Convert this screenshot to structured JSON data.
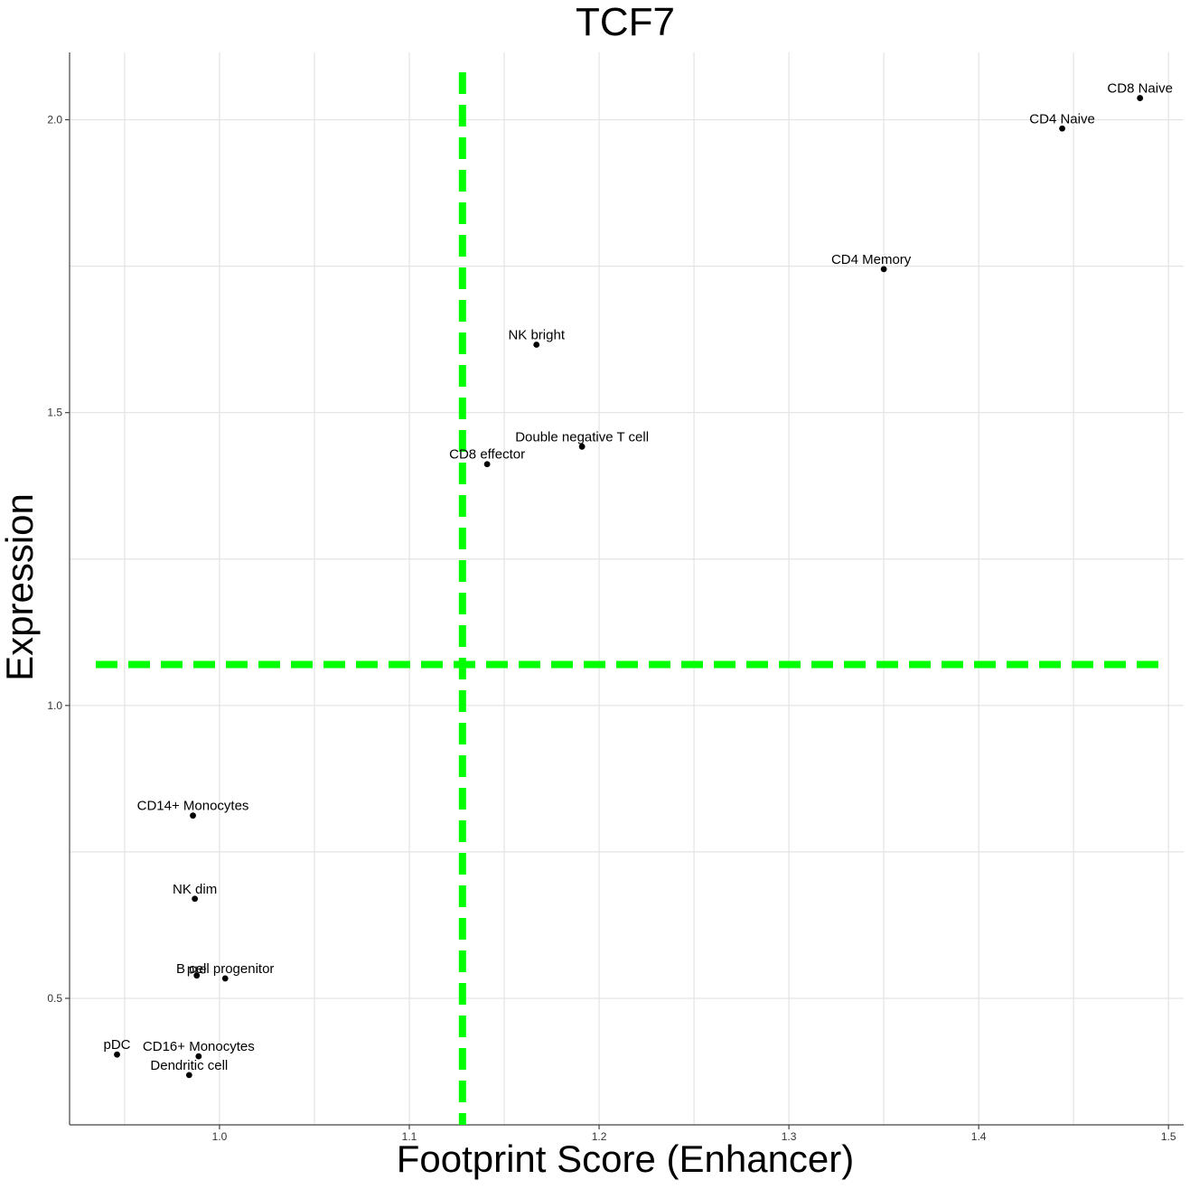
{
  "chart_data": {
    "type": "scatter",
    "title": "TCF7",
    "xlabel": "Footprint Score (Enhancer)",
    "ylabel": "Expression",
    "xlim": [
      0.921,
      1.508
    ],
    "ylim": [
      0.284,
      2.115
    ],
    "xticks": [
      1.0,
      1.1,
      1.2,
      1.3,
      1.4,
      1.5
    ],
    "xtick_labels": [
      "1.0",
      "1.1",
      "1.2",
      "1.3",
      "1.4",
      "1.5"
    ],
    "yticks": [
      0.5,
      1.0,
      1.5,
      2.0
    ],
    "ytick_labels": [
      "0.5",
      "1.0",
      "1.5",
      "2.0"
    ],
    "grid": true,
    "reference_lines": {
      "vertical_x": 1.128,
      "horizontal_y": 1.07,
      "color": "#00ff00",
      "style": "dashed"
    },
    "points": [
      {
        "label": "CD8 Naive",
        "x": 1.485,
        "y": 2.037
      },
      {
        "label": "CD4 Naive",
        "x": 1.444,
        "y": 1.985
      },
      {
        "label": "CD4 Memory",
        "x": 1.35,
        "y": 1.745
      },
      {
        "label": "NK bright",
        "x": 1.167,
        "y": 1.616
      },
      {
        "label": "Double negative T cell",
        "x": 1.191,
        "y": 1.442
      },
      {
        "label": "CD8 effector",
        "x": 1.141,
        "y": 1.412
      },
      {
        "label": "CD14+ Monocytes",
        "x": 0.986,
        "y": 0.812
      },
      {
        "label": "NK dim",
        "x": 0.987,
        "y": 0.67
      },
      {
        "label": "B cell progenitor",
        "x": 1.003,
        "y": 0.534
      },
      {
        "label": "pre",
        "x": 0.988,
        "y": 0.539
      },
      {
        "label": "pDC",
        "x": 0.946,
        "y": 0.404
      },
      {
        "label": "CD16+ Monocytes",
        "x": 0.989,
        "y": 0.401
      },
      {
        "label": "Dendritic cell",
        "x": 0.984,
        "y": 0.369
      }
    ]
  }
}
